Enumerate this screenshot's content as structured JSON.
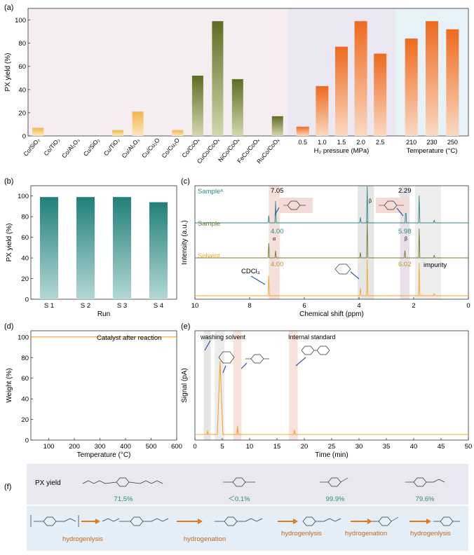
{
  "panel_labels": {
    "a": "(a)",
    "b": "(b)",
    "c": "(c)",
    "d": "(d)",
    "e": "(e)",
    "f": "(f)"
  },
  "colors": {
    "catalyst_light": "#f3c066",
    "catalyst_green": "#6f7c2e",
    "pressure_orange": "#f0742a",
    "teal": "#2a8a84",
    "olive": "#6f7c2e",
    "solvent_orange": "#f5a623",
    "bg_pink": "#f5edf0",
    "bg_lavender": "#ece8f3",
    "bg_blue": "#e6f1f8"
  },
  "chart_data": [
    {
      "id": "a",
      "type": "bar",
      "ylabel": "PX yield (%)",
      "ylim": [
        0,
        110
      ],
      "yticks": [
        0,
        20,
        40,
        60,
        80,
        100
      ],
      "groups": [
        {
          "name": "catalyst",
          "xlabel": "",
          "categories": [
            "Co/SiO₂",
            "Co/TiO₂",
            "Co/Al₂O₃",
            "Cu/SiO₂",
            "Cu/TiO₂",
            "Cu/Al₂O₃",
            "Cu/Cu₂O",
            "Co/Cu₂O",
            "Co/CoOₓ",
            "CuCo/CoOₓ",
            "NiCo/CoOₓ",
            "FeCo/CoOₓ",
            "RuCo/CoOₓ"
          ],
          "values": [
            7,
            0,
            0,
            0,
            5,
            21,
            0,
            5,
            52,
            99,
            49,
            0,
            17
          ]
        },
        {
          "name": "pressure",
          "xlabel": "H₂ pressure (MPa)",
          "categories": [
            "0.5",
            "1.0",
            "1.5",
            "2.0",
            "2.5"
          ],
          "values": [
            8,
            43,
            77,
            99,
            71
          ]
        },
        {
          "name": "temperature",
          "xlabel": "Temperature (°C)",
          "categories": [
            "210",
            "230",
            "250"
          ],
          "values": [
            84,
            99,
            92
          ]
        }
      ]
    },
    {
      "id": "b",
      "type": "bar",
      "xlabel": "Run",
      "ylabel": "PX yield (%)",
      "ylim": [
        0,
        110
      ],
      "yticks": [
        0,
        20,
        40,
        60,
        80,
        100
      ],
      "categories": [
        "S 1",
        "S 2",
        "S 3",
        "S 4"
      ],
      "values": [
        99,
        99,
        99,
        94
      ]
    },
    {
      "id": "c",
      "type": "line",
      "xlabel": "Chemical shift (ppm)",
      "ylabel": "Intensity (a.u.)",
      "xlim": [
        10,
        0
      ],
      "xticks": [
        10,
        8,
        6,
        4,
        2,
        0
      ],
      "series": [
        {
          "name": "Sampleᵃ",
          "peaks": [
            [
              7.3,
              0.2
            ],
            [
              7.05,
              0.6
            ],
            [
              3.95,
              0.15
            ],
            [
              3.7,
              1.0
            ],
            [
              2.29,
              0.5
            ],
            [
              1.8,
              0.75
            ],
            [
              1.25,
              0.08
            ]
          ]
        },
        {
          "name": "Sample",
          "peaks": [
            [
              7.3,
              0.4
            ],
            [
              7.05,
              0.2
            ],
            [
              3.95,
              0.15
            ],
            [
              3.7,
              1.0
            ],
            [
              2.32,
              0.2
            ],
            [
              1.8,
              0.8
            ],
            [
              1.25,
              0.08
            ]
          ]
        },
        {
          "name": "Solvent",
          "peaks": [
            [
              7.3,
              0.55
            ],
            [
              3.95,
              0.2
            ],
            [
              3.7,
              1.0
            ],
            [
              1.8,
              0.9
            ],
            [
              1.25,
              0.06
            ]
          ]
        }
      ],
      "annotations": [
        "7.05",
        "2.29",
        "4.00",
        "5.98",
        "4.00",
        "6.02",
        "CDCl₃",
        "impurity",
        "α",
        "β",
        "α",
        "β"
      ]
    },
    {
      "id": "d",
      "type": "line",
      "xlabel": "Temperature (°C)",
      "ylabel": "Weight (%)",
      "xlim": [
        30,
        600
      ],
      "xticks": [
        100,
        200,
        300,
        400,
        500,
        600
      ],
      "ylim": [
        0,
        106
      ],
      "yticks": [
        0,
        20,
        40,
        60,
        80,
        100
      ],
      "series": [
        {
          "name": "Catalyst after reaction",
          "x": [
            30,
            600
          ],
          "y": [
            100,
            100
          ]
        }
      ]
    },
    {
      "id": "e",
      "type": "line",
      "xlabel": "Time (min)",
      "ylabel": "Signal (pA)",
      "xlim": [
        0,
        50
      ],
      "xticks": [
        0,
        5,
        10,
        15,
        20,
        25,
        30,
        35,
        40,
        45,
        50
      ],
      "series": [
        {
          "name": "",
          "peaks": [
            [
              2.3,
              0.05
            ],
            [
              4.6,
              1.0
            ],
            [
              7.8,
              0.12
            ],
            [
              18.2,
              0.06
            ]
          ]
        }
      ],
      "annotations": [
        "washing solvent",
        "Internal standard"
      ]
    }
  ],
  "panel_f": {
    "row1_title": "PX yield",
    "yields": [
      "71.5%",
      "＜0.1%",
      "99.9%",
      "79.6%"
    ],
    "steps": [
      "hydrogenlysis",
      "hydrogenation",
      "hydrogenlysis",
      "hydrogenation",
      "hydrogenlysis"
    ]
  }
}
